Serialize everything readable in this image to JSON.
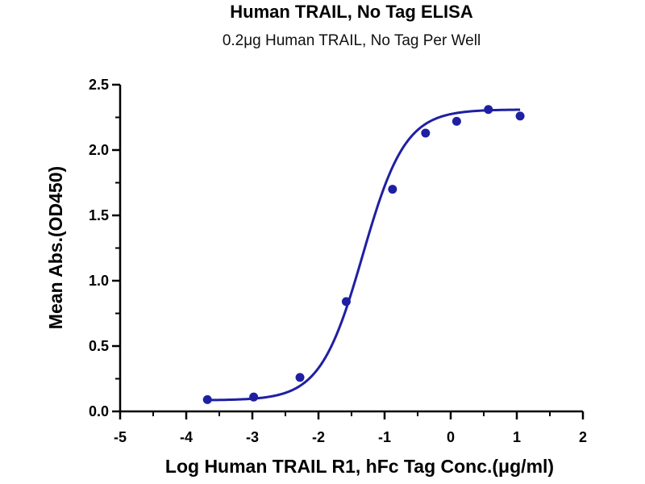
{
  "chart_data": {
    "type": "scatter",
    "title": "Human TRAIL, No Tag ELISA",
    "subtitle": "0.2μg Human TRAIL, No Tag Per Well",
    "xlabel": "Log Human TRAIL R1, hFc Tag Conc.(μg/ml)",
    "ylabel": "Mean Abs.(OD450)",
    "xlim": [
      -5,
      2
    ],
    "ylim": [
      0,
      2.5
    ],
    "x_ticks": [
      "-5",
      "-4",
      "-3",
      "-2",
      "-1",
      "0",
      "1",
      "2"
    ],
    "y_ticks": [
      "0.0",
      "0.5",
      "1.0",
      "1.5",
      "2.0",
      "2.5"
    ],
    "grid": false,
    "legend": "none",
    "colors": {
      "series": "#1f1fa3",
      "axis": "#000000"
    },
    "series": [
      {
        "x": [
          -3.68,
          -2.98,
          -2.28,
          -1.58,
          -0.88,
          -0.38,
          0.09,
          0.57,
          1.05
        ],
        "y": [
          0.09,
          0.11,
          0.26,
          0.84,
          1.7,
          2.13,
          2.22,
          2.31,
          2.26
        ]
      }
    ],
    "fit": {
      "model": "4PL",
      "bottom": 0.085,
      "top": 2.31,
      "log_ec50": -1.33,
      "hill_slope": 1.35
    }
  }
}
